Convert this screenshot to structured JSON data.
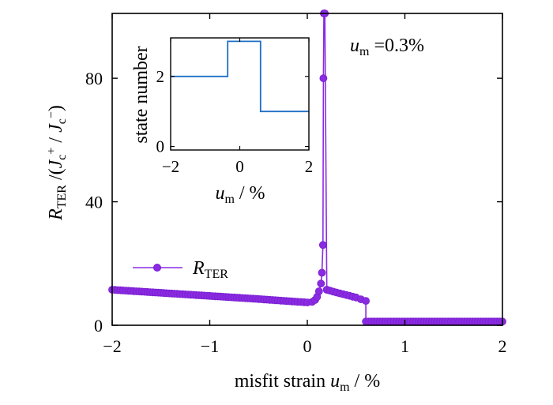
{
  "chart_data": [
    {
      "type": "line",
      "title": "",
      "xlabel": "misfit strain u_m / %",
      "xlabel_parts": {
        "prefix": "misfit strain ",
        "var": "u",
        "sub": "m",
        "suffix": " / %"
      },
      "ylabel": "R_TER / (J_c+ / J_c−)",
      "ylabel_parts": {
        "R": "R",
        "R_sub": "TER",
        "mid": " /(",
        "J1": "J",
        "J1_sub": "c",
        "J1_sup": "+",
        "slash": " / ",
        "J2": "J",
        "J2_sub": "c",
        "J2_sup": "−",
        "close": ")"
      },
      "xlim": [
        -2,
        2
      ],
      "ylim": [
        0,
        101
      ],
      "xticks": [
        -2,
        -1,
        0,
        1,
        2
      ],
      "xtick_labels": [
        "−2",
        "−1",
        "0",
        "1",
        "2"
      ],
      "yticks": [
        0,
        40,
        80
      ],
      "ytick_labels": [
        "0",
        "40",
        "80"
      ],
      "grid": false,
      "legend_position": "left-middle",
      "annotation": {
        "var": "u",
        "sub": "m",
        "text": " =0.3%"
      },
      "color": "#8a2be2",
      "series": [
        {
          "name": "R_TER",
          "legend_parts": {
            "R": "R",
            "sub": "TER"
          },
          "x": [
            -2.0,
            -1.5,
            -1.0,
            -0.5,
            -0.1,
            0.0,
            0.05,
            0.08,
            0.1,
            0.12,
            0.14,
            0.15,
            0.16,
            0.165,
            0.17,
            0.18,
            0.2,
            0.2,
            0.3,
            0.4,
            0.5,
            0.55,
            0.6,
            0.6,
            0.8,
            1.0,
            1.5,
            2.0
          ],
          "y": [
            11.5,
            10.5,
            9.5,
            8.5,
            7.6,
            7.4,
            7.6,
            8.2,
            9.2,
            11.0,
            13.5,
            17.0,
            26.0,
            80.0,
            101.0,
            101.0,
            11.5,
            11.5,
            10.6,
            9.8,
            9.0,
            8.4,
            7.9,
            1.2,
            1.2,
            1.2,
            1.2,
            1.2
          ]
        }
      ]
    },
    {
      "type": "line",
      "title": "",
      "xlabel": "u_m / %",
      "xlabel_parts": {
        "var": "u",
        "sub": "m",
        "suffix": " / %"
      },
      "ylabel": "state number",
      "xlim": [
        -2,
        2
      ],
      "ylim": [
        -0.1,
        3.1
      ],
      "xticks": [
        -2,
        0,
        2
      ],
      "xtick_labels": [
        "−2",
        "0",
        "2"
      ],
      "yticks": [
        0,
        2
      ],
      "ytick_labels": [
        "0",
        "2"
      ],
      "grid": false,
      "color": "#1f6fc5",
      "series": [
        {
          "x": [
            -2.0,
            -0.35,
            -0.35,
            0.6,
            0.6,
            2.0
          ],
          "y": [
            2,
            2,
            3,
            3,
            1,
            1
          ]
        }
      ]
    }
  ]
}
